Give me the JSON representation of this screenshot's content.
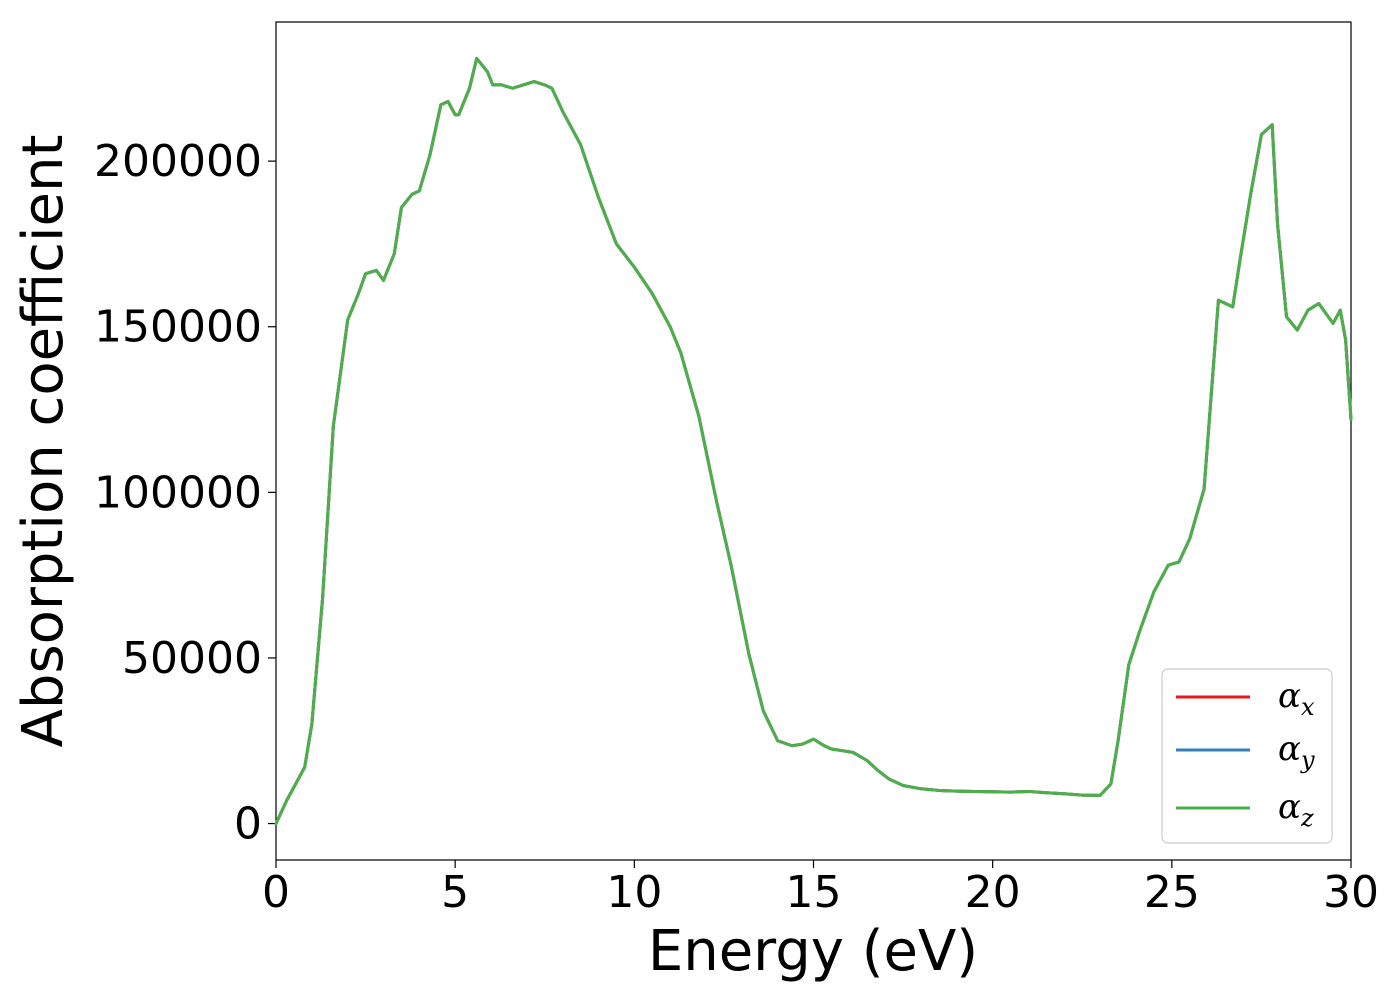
{
  "chart_data": {
    "type": "line",
    "xlabel": "Energy (eV)",
    "ylabel": "Absorption coefficient",
    "xlim": [
      0,
      30
    ],
    "ylim": [
      -11000,
      242000
    ],
    "x_ticks": [
      0,
      5,
      10,
      15,
      20,
      25,
      30
    ],
    "y_ticks": [
      0,
      50000,
      100000,
      150000,
      200000
    ],
    "grid": false,
    "legend_position": "lower-right",
    "series": [
      {
        "name": "α",
        "subscript": "x",
        "color": "#e41a1c"
      },
      {
        "name": "α",
        "subscript": "y",
        "color": "#377eb8"
      },
      {
        "name": "α",
        "subscript": "z",
        "color": "#4daf4a"
      }
    ],
    "x": [
      0,
      0.3,
      0.5,
      0.8,
      1.0,
      1.3,
      1.6,
      2.0,
      2.3,
      2.5,
      2.8,
      3.0,
      3.3,
      3.5,
      3.8,
      4.0,
      4.3,
      4.6,
      4.8,
      5.0,
      5.1,
      5.4,
      5.6,
      5.9,
      6.05,
      6.3,
      6.6,
      6.9,
      7.2,
      7.5,
      7.7,
      8.0,
      8.5,
      9.0,
      9.5,
      10.0,
      10.5,
      11.0,
      11.3,
      11.8,
      12.3,
      12.7,
      13.2,
      13.6,
      14.0,
      14.4,
      14.7,
      15.0,
      15.3,
      15.5,
      15.8,
      16.1,
      16.5,
      16.8,
      17.1,
      17.5,
      18.0,
      18.5,
      19.0,
      19.5,
      20.0,
      20.5,
      21.0,
      21.5,
      22.0,
      22.5,
      23.0,
      23.3,
      23.5,
      23.8,
      24.1,
      24.5,
      24.9,
      25.2,
      25.5,
      25.9,
      26.3,
      26.5,
      26.7,
      26.9,
      27.2,
      27.5,
      27.8,
      27.95,
      28.2,
      28.5,
      28.8,
      29.1,
      29.3,
      29.5,
      29.7,
      29.85,
      30.0
    ],
    "y_series": [
      0,
      7000,
      11000,
      17000,
      30000,
      68000,
      120000,
      152000,
      160000,
      166000,
      167000,
      164000,
      172000,
      186000,
      190000,
      191000,
      202000,
      217000,
      218000,
      214000,
      214000,
      222000,
      231000,
      227000,
      223000,
      223000,
      222000,
      223000,
      224000,
      223000,
      222000,
      215000,
      205000,
      189000,
      175000,
      168000,
      160000,
      150000,
      142000,
      123000,
      97000,
      78000,
      51000,
      34000,
      25000,
      23500,
      24000,
      25500,
      23500,
      22500,
      22000,
      21500,
      19000,
      16000,
      13500,
      11500,
      10500,
      10000,
      9800,
      9700,
      9600,
      9500,
      9700,
      9300,
      9000,
      8600,
      8500,
      12000,
      25000,
      48000,
      58000,
      70000,
      78000,
      79000,
      86000,
      101000,
      158000,
      157000,
      156000,
      170000,
      190000,
      208000,
      211000,
      181000,
      153000,
      149000,
      155000,
      157000,
      154000,
      151000,
      155000,
      146000,
      122000
    ]
  }
}
